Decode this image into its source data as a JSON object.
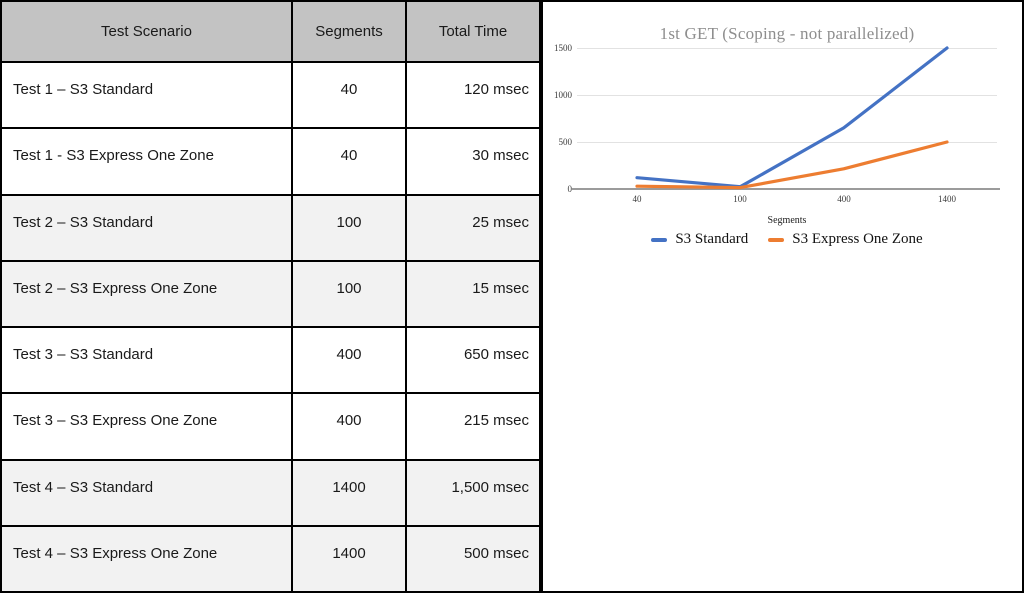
{
  "table": {
    "headers": [
      "Test Scenario",
      "Segments",
      "Total Time"
    ],
    "rows": [
      {
        "scenario": "Test 1 – S3 Standard",
        "segments": "40",
        "total_time": "120 msec"
      },
      {
        "scenario": "Test 1 - S3 Express One Zone",
        "segments": "40",
        "total_time": "30 msec"
      },
      {
        "scenario": "Test 2 – S3 Standard",
        "segments": "100",
        "total_time": "25 msec"
      },
      {
        "scenario": "Test 2 – S3 Express One Zone",
        "segments": "100",
        "total_time": "15 msec"
      },
      {
        "scenario": "Test 3 – S3 Standard",
        "segments": "400",
        "total_time": "650 msec"
      },
      {
        "scenario": "Test 3 – S3 Express One Zone",
        "segments": "400",
        "total_time": "215 msec"
      },
      {
        "scenario": "Test 4 – S3 Standard",
        "segments": "1400",
        "total_time": "1,500 msec"
      },
      {
        "scenario": "Test 4 – S3 Express One Zone",
        "segments": "1400",
        "total_time": "500 msec"
      }
    ]
  },
  "chart_data": {
    "type": "line",
    "title": "1st GET (Scoping - not parallelized)",
    "xlabel": "Segments",
    "categories": [
      "40",
      "100",
      "400",
      "1400"
    ],
    "series": [
      {
        "name": "S3 Standard",
        "color": "#4472C4",
        "values": [
          120,
          25,
          650,
          1500
        ]
      },
      {
        "name": "S3 Express One Zone",
        "color": "#ED7D31",
        "values": [
          30,
          15,
          215,
          500
        ]
      }
    ],
    "yticks": [
      0,
      500,
      1000,
      1500
    ],
    "ylim": [
      0,
      1500
    ],
    "grid": true,
    "legend_position": "bottom"
  },
  "colors": {
    "header_bg": "#C3C3C3",
    "row_shaded": "#F2F2F2",
    "title_text": "#8E8E8E",
    "gridline": "#E2E2E2",
    "axis_line": "#9B9B9B",
    "border": "#000000"
  }
}
